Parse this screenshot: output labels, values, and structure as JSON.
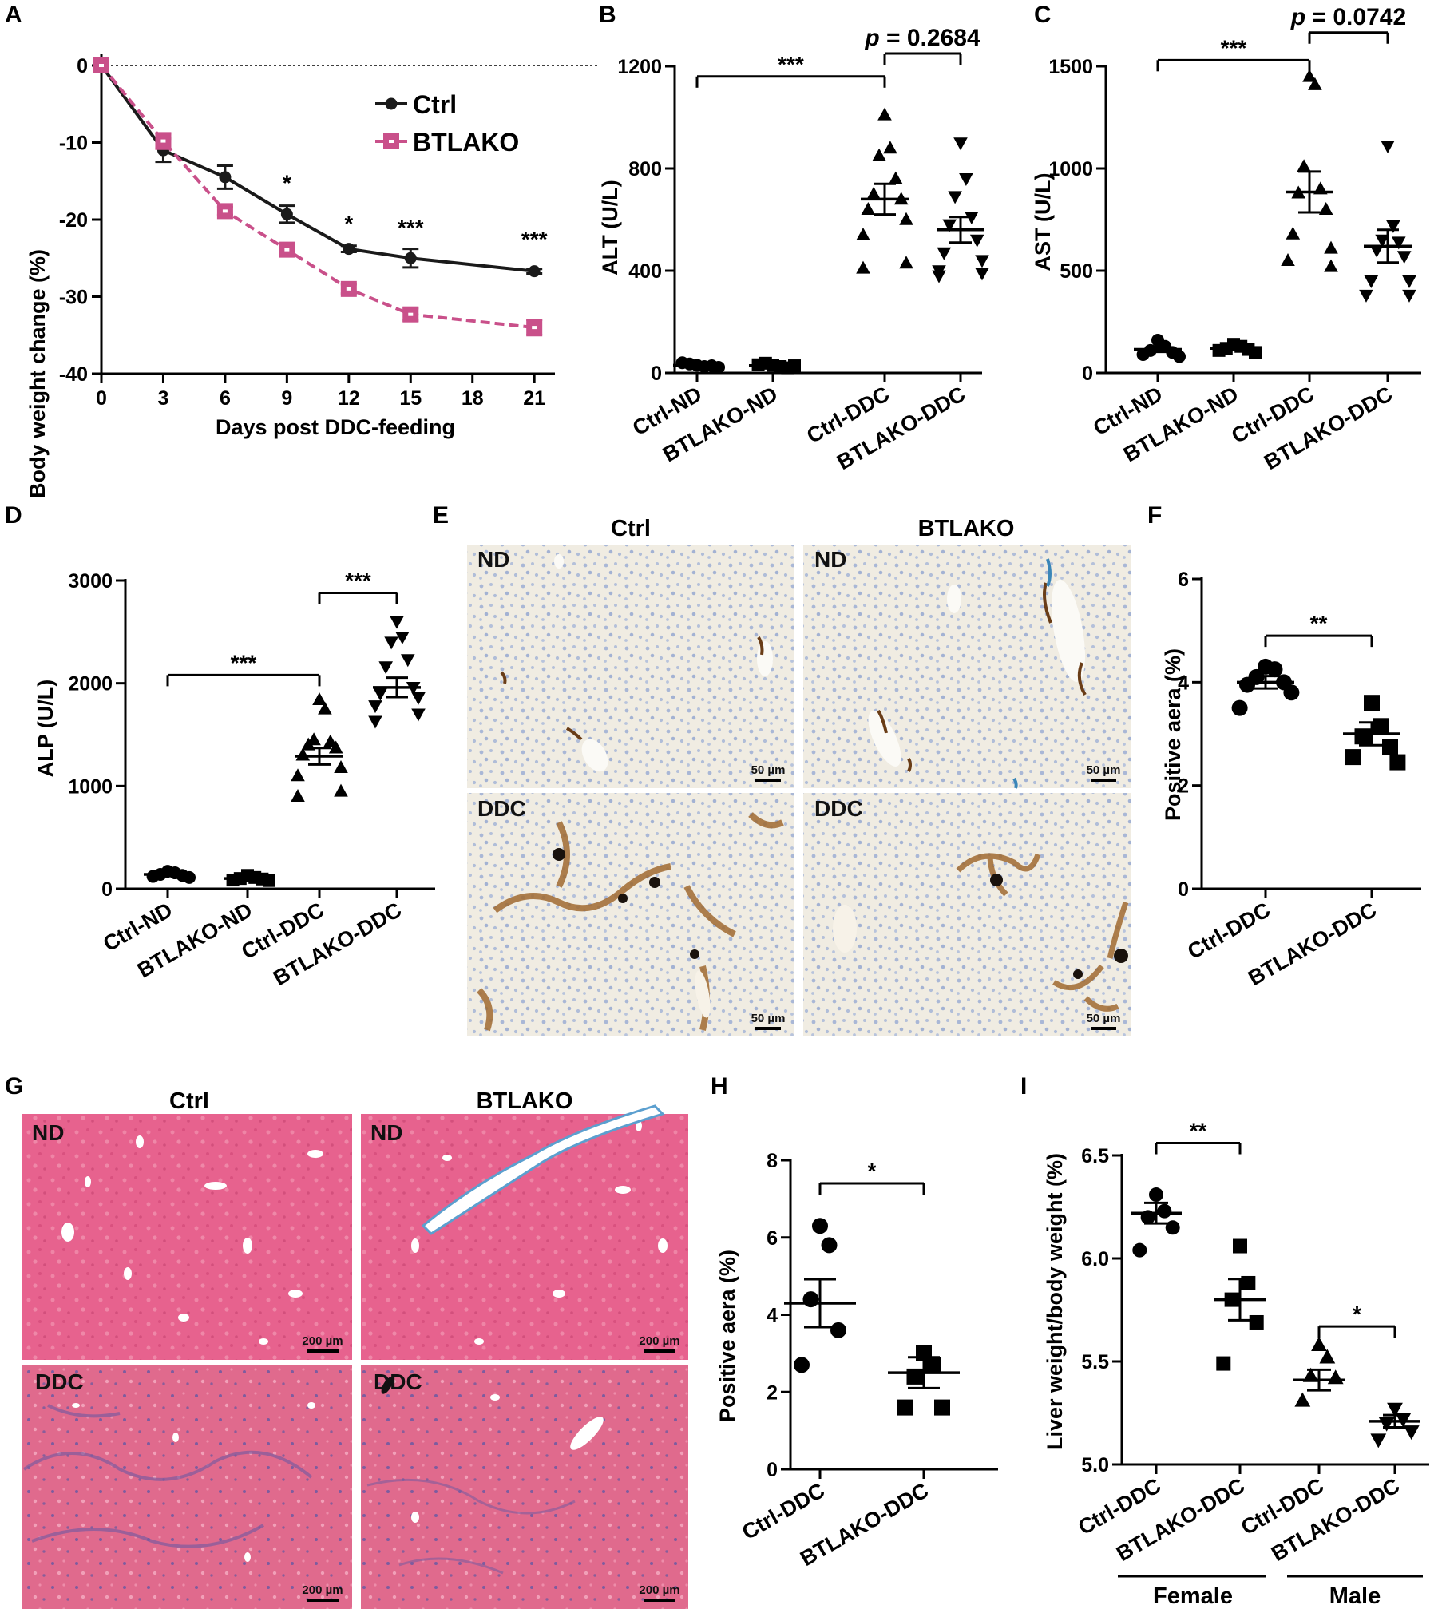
{
  "panels": {
    "A": {
      "label": "A"
    },
    "B": {
      "label": "B",
      "pvalue": "p = 0.2684"
    },
    "C": {
      "label": "C",
      "pvalue": "p = 0.0742"
    },
    "D": {
      "label": "D"
    },
    "E": {
      "label": "E",
      "col1": "Ctrl",
      "col2": "BTLAKO",
      "row1": "ND",
      "row2": "DDC",
      "scale": "50 µm"
    },
    "F": {
      "label": "F"
    },
    "G": {
      "label": "G",
      "col1": "Ctrl",
      "col2": "BTLAKO",
      "row1": "ND",
      "row2": "DDC",
      "scale": "200 µm"
    },
    "H": {
      "label": "H"
    },
    "I": {
      "label": "I",
      "group1": "Female",
      "group2": "Male"
    }
  },
  "colors": {
    "ctrl": "#1a1a1a",
    "btlako": "#c9508a",
    "he_pink": "#e7628e",
    "ihc_bg": "#f0ece2"
  },
  "chart_data": [
    {
      "id": "A",
      "type": "line",
      "xlabel": "Days post DDC-feeding",
      "ylabel": "Body weight change (%)",
      "x": [
        0,
        3,
        6,
        9,
        12,
        15,
        21
      ],
      "xticks": [
        0,
        3,
        6,
        9,
        12,
        15,
        18,
        21
      ],
      "yticks": [
        0,
        -10,
        -20,
        -30,
        -40
      ],
      "xlim": [
        0,
        22
      ],
      "ylim": [
        -40,
        0
      ],
      "series": [
        {
          "name": "Ctrl",
          "values": [
            0,
            -11,
            -14.5,
            -19.3,
            -23.8,
            -25,
            -26.7
          ],
          "err": [
            0,
            1.5,
            1.5,
            1.1,
            0.4,
            1.2,
            0.3
          ]
        },
        {
          "name": "BTLAKO",
          "values": [
            0,
            -9.8,
            -18.9,
            -23.9,
            -29,
            -32.3,
            -34
          ],
          "err": [
            0,
            1,
            0.5,
            0.5,
            0.6,
            0.8,
            1
          ]
        }
      ],
      "annotations": [
        {
          "x": 9,
          "y": -16.2,
          "text": "*"
        },
        {
          "x": 12,
          "y": -21.5,
          "text": "*"
        },
        {
          "x": 15,
          "y": -22,
          "text": "***"
        },
        {
          "x": 21,
          "y": -23.5,
          "text": "***"
        }
      ]
    },
    {
      "id": "B",
      "type": "scatter",
      "ylabel": "ALT (U/L)",
      "categories": [
        "Ctrl-ND",
        "BTLAKO-ND",
        "Ctrl-DDC",
        "BTLAKO-DDC"
      ],
      "ylim": [
        0,
        1200
      ],
      "yticks": [
        0,
        400,
        800,
        1200
      ],
      "markers": [
        "circle",
        "square",
        "triangle-up",
        "triangle-down"
      ],
      "points": [
        [
          30,
          25,
          35,
          28,
          40,
          22
        ],
        [
          30,
          25,
          38,
          20,
          32,
          28
        ],
        [
          1010,
          880,
          850,
          760,
          700,
          680,
          640,
          600,
          540,
          430,
          410
        ],
        [
          900,
          760,
          690,
          610,
          580,
          520,
          470,
          440,
          400,
          390,
          380
        ]
      ],
      "mean": [
        30,
        29,
        680,
        560
      ],
      "sem": [
        4,
        4,
        60,
        50
      ],
      "brackets": [
        {
          "from": 0,
          "to": 2,
          "y": 1160,
          "text": "***"
        },
        {
          "from": 2,
          "to": 3,
          "y": 1250,
          "text": "p = 0.2684"
        }
      ]
    },
    {
      "id": "C",
      "type": "scatter",
      "ylabel": "AST (U/L)",
      "categories": [
        "Ctrl-ND",
        "BTLAKO-ND",
        "Ctrl-DDC",
        "BTLAKO-DDC"
      ],
      "ylim": [
        0,
        1500
      ],
      "yticks": [
        0,
        500,
        1000,
        1500
      ],
      "markers": [
        "circle",
        "square",
        "triangle-up",
        "triangle-down"
      ],
      "points": [
        [
          160,
          130,
          110,
          100,
          90,
          80
        ],
        [
          140,
          130,
          120,
          115,
          110,
          100
        ],
        [
          1450,
          1410,
          1010,
          900,
          880,
          800,
          680,
          610,
          550,
          520
        ],
        [
          1110,
          720,
          650,
          640,
          600,
          570,
          450,
          450,
          380,
          380
        ]
      ],
      "mean": [
        115,
        120,
        885,
        620
      ],
      "sem": [
        12,
        8,
        100,
        80
      ],
      "brackets": [
        {
          "from": 0,
          "to": 2,
          "y": 1530,
          "text": "***"
        },
        {
          "from": 2,
          "to": 3,
          "y": 1665,
          "text": "p = 0.0742"
        }
      ]
    },
    {
      "id": "D",
      "type": "scatter",
      "ylabel": "ALP (U/L)",
      "categories": [
        "Ctrl-ND",
        "BTLAKO-ND",
        "Ctrl-DDC",
        "BTLAKO-DDC"
      ],
      "ylim": [
        0,
        3000
      ],
      "yticks": [
        0,
        1000,
        2000,
        3000
      ],
      "markers": [
        "circle",
        "square",
        "triangle-up",
        "triangle-down"
      ],
      "points": [
        [
          170,
          155,
          140,
          130,
          120,
          110
        ],
        [
          130,
          110,
          100,
          95,
          85,
          80
        ],
        [
          1840,
          1750,
          1450,
          1430,
          1400,
          1370,
          1300,
          1180,
          1100,
          950,
          900
        ],
        [
          2600,
          2450,
          2400,
          2230,
          2160,
          1960,
          1900,
          1860,
          1780,
          1700,
          1630
        ]
      ],
      "mean": [
        140,
        100,
        1290,
        1960
      ],
      "sem": [
        10,
        8,
        80,
        95
      ],
      "brackets": [
        {
          "from": 0,
          "to": 2,
          "y": 2080,
          "text": "***"
        },
        {
          "from": 2,
          "to": 3,
          "y": 2880,
          "text": "***"
        }
      ]
    },
    {
      "id": "F",
      "type": "scatter",
      "ylabel": "Positive aera (%)",
      "categories": [
        "Ctrl-DDC",
        "BTLAKO-DDC"
      ],
      "ylim": [
        0,
        6
      ],
      "yticks": [
        0,
        2,
        4,
        6
      ],
      "markers": [
        "circle",
        "square"
      ],
      "points": [
        [
          4.3,
          4.25,
          4.1,
          4.0,
          3.95,
          3.8,
          3.5
        ],
        [
          3.6,
          3.15,
          2.95,
          2.75,
          2.55,
          2.45
        ]
      ],
      "mean": [
        4.0,
        3.0
      ],
      "sem": [
        0.12,
        0.22
      ],
      "brackets": [
        {
          "from": 0,
          "to": 1,
          "y": 4.9,
          "text": "**"
        }
      ]
    },
    {
      "id": "H",
      "type": "scatter",
      "ylabel": "Positive aera (%)",
      "categories": [
        "Ctrl-DDC",
        "BTLAKO-DDC"
      ],
      "ylim": [
        0,
        8
      ],
      "yticks": [
        0,
        2,
        4,
        6,
        8
      ],
      "markers": [
        "circle",
        "square"
      ],
      "points": [
        [
          6.3,
          5.8,
          4.4,
          3.6,
          2.7
        ],
        [
          3.0,
          2.7,
          2.4,
          1.6,
          1.6
        ]
      ],
      "mean": [
        4.3,
        2.5
      ],
      "sem": [
        0.62,
        0.4
      ],
      "brackets": [
        {
          "from": 0,
          "to": 1,
          "y": 7.4,
          "text": "*"
        }
      ]
    },
    {
      "id": "I",
      "type": "scatter",
      "ylabel": "Liver weight/body weight (%)",
      "categories": [
        "Ctrl-DDC",
        "BTLAKO-DDC",
        "Ctrl-DDC",
        "BTLAKO-DDC"
      ],
      "ylim": [
        5.0,
        6.5
      ],
      "yticks": [
        5.0,
        5.5,
        6.0,
        6.5
      ],
      "markers": [
        "circle",
        "square",
        "triangle-up",
        "triangle-down"
      ],
      "points": [
        [
          6.31,
          6.23,
          6.2,
          6.15,
          6.04
        ],
        [
          6.06,
          5.88,
          5.8,
          5.69,
          5.49
        ],
        [
          5.58,
          5.52,
          5.43,
          5.42,
          5.31
        ],
        [
          5.27,
          5.22,
          5.2,
          5.16,
          5.12
        ]
      ],
      "mean": [
        6.22,
        5.8,
        5.41,
        5.21
      ],
      "sem": [
        0.05,
        0.1,
        0.05,
        0.03
      ],
      "brackets": [
        {
          "from": 0,
          "to": 1,
          "y": 6.56,
          "text": "**"
        },
        {
          "from": 2,
          "to": 3,
          "y": 5.67,
          "text": "*"
        }
      ]
    }
  ]
}
